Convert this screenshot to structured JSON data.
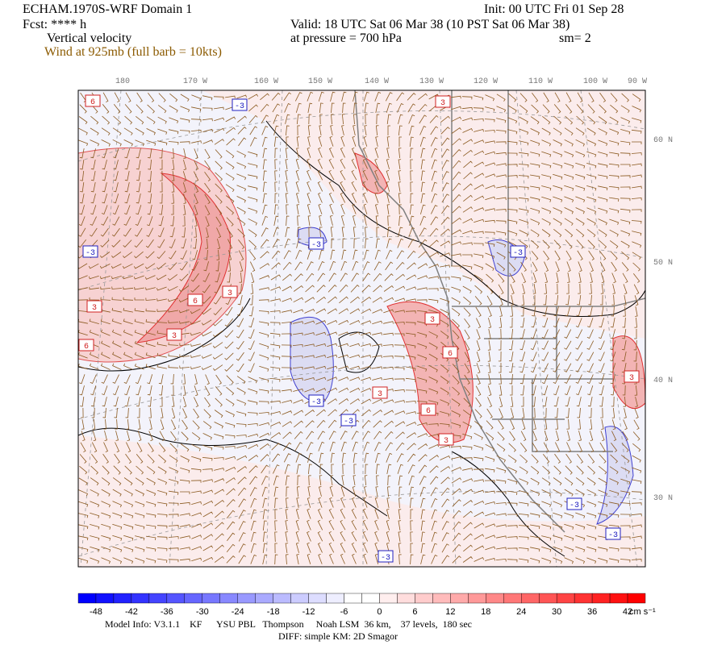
{
  "header": {
    "title": "ECHAM.1970S-WRF Domain 1",
    "forecast": "Fcst: **** h",
    "field": "Vertical velocity",
    "wind": "Wind at 925mb (full barb = 10kts)",
    "init": "Init: 00 UTC Fri 01 Sep 28",
    "valid": "Valid: 18 UTC Sat 06 Mar 38 (10 PST Sat 06 Mar 38)",
    "pressure": "at pressure =  700 hPa",
    "smoothing": "sm= 2"
  },
  "map": {
    "longitude_labels": [
      "180",
      "170 W",
      "160 W",
      "150 W",
      "140 W",
      "130 W",
      "120 W",
      "110 W",
      "100 W",
      "90 W"
    ],
    "latitude_labels": [
      "60 N",
      "50 N",
      "40 N",
      "30 N"
    ],
    "contour_labels": [
      "6",
      "-3",
      "3",
      "-3",
      "-3",
      "-3",
      "3",
      "6",
      "3",
      "3",
      "6",
      "3",
      "6",
      "3",
      "-3",
      "-3",
      "6",
      "3",
      "3",
      "-3",
      "-3",
      "-3"
    ]
  },
  "colorbar": {
    "labels": [
      -48,
      -42,
      -36,
      -30,
      -24,
      -18,
      -12,
      -6,
      0,
      6,
      12,
      18,
      24,
      30,
      36,
      42
    ],
    "unit": "cm s⁻¹"
  },
  "footer": {
    "model_info": "Model Info: V3.1.1    KF      YSU PBL   Thompson     Noah LSM  36 km,    37 levels,  180 sec",
    "diff": "DIFF: simple KM: 2D Smagor"
  }
}
